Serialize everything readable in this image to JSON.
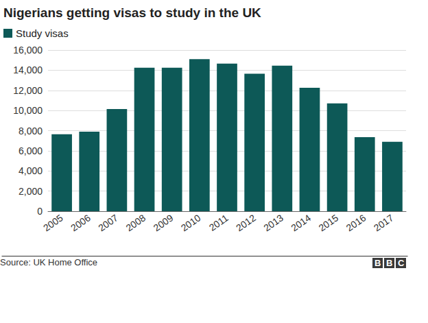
{
  "chart_data": {
    "type": "bar",
    "title": "Nigerians getting visas to study in the UK",
    "categories": [
      "2005",
      "2006",
      "2007",
      "2008",
      "2009",
      "2010",
      "2011",
      "2012",
      "2013",
      "2014",
      "2015",
      "2016",
      "2017"
    ],
    "series": [
      {
        "name": "Study visas",
        "color": "#0d5957",
        "values": [
          7650,
          7900,
          10150,
          14250,
          14250,
          15100,
          14650,
          13650,
          14450,
          12250,
          10700,
          7350,
          6900
        ]
      }
    ],
    "ylim": [
      0,
      16000
    ],
    "yticks": [
      0,
      {
        "value": 2000,
        "label": "2,000"
      },
      {
        "value": 4000,
        "label": "4,000"
      },
      {
        "value": 6000,
        "label": "6,000"
      },
      {
        "value": 8000,
        "label": "8,000"
      },
      {
        "value": 10000,
        "label": "10,000"
      },
      {
        "value": 12000,
        "label": "12,000"
      },
      {
        "value": 14000,
        "label": "14,000"
      },
      {
        "value": 16000,
        "label": "16,000"
      }
    ],
    "grid": true,
    "legend": "top-left",
    "source": "Source: UK Home Office",
    "logo": "BBC"
  }
}
